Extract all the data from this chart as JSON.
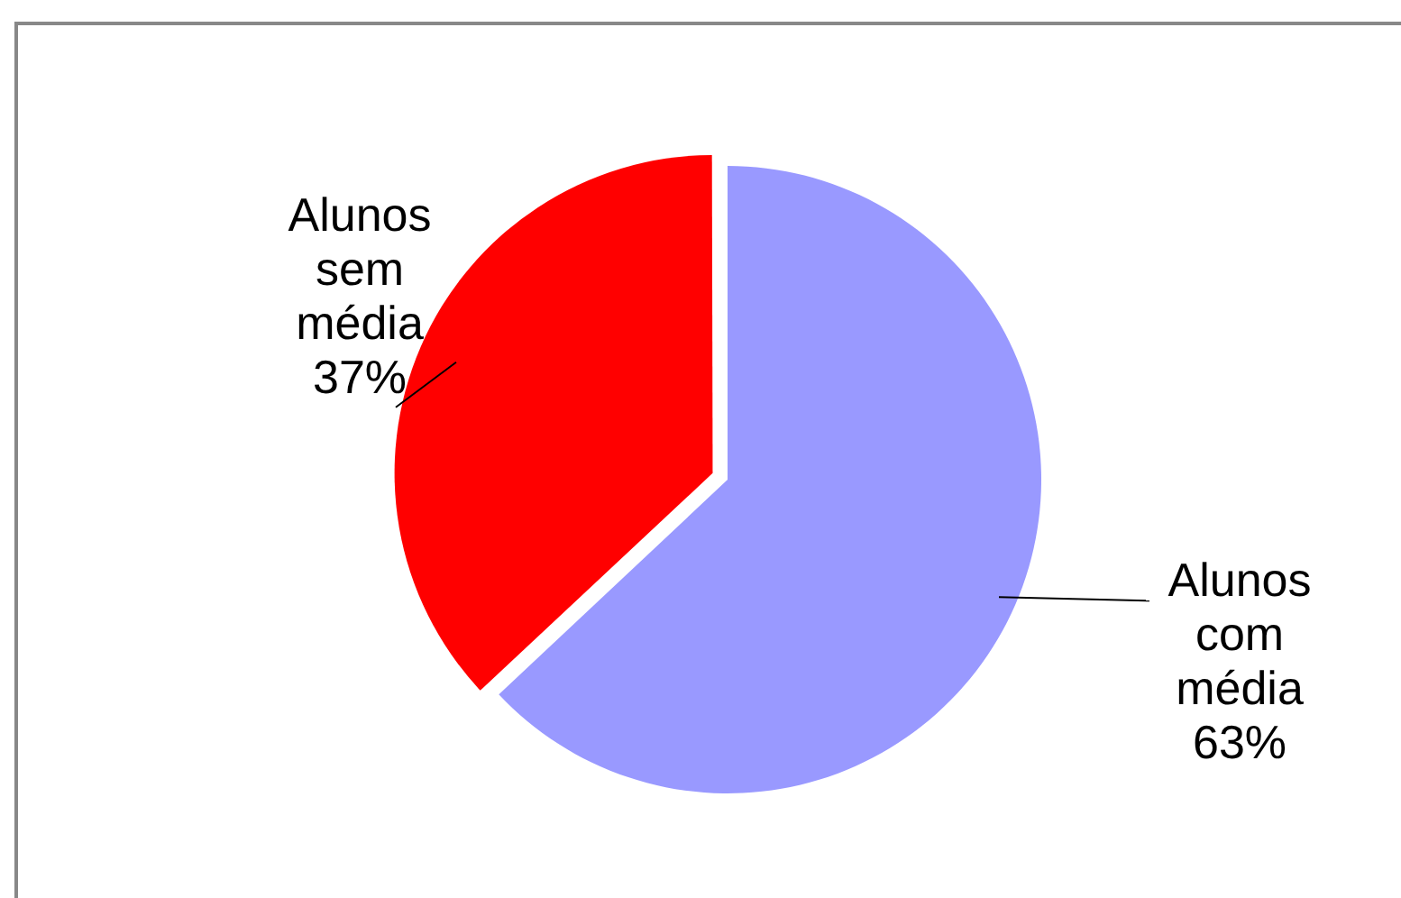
{
  "chart_data": {
    "type": "pie",
    "categories": [
      "Alunos com média",
      "Alunos sem média"
    ],
    "values": [
      63,
      37
    ],
    "value_labels": [
      "63%",
      "37%"
    ],
    "colors": [
      "#9999ff",
      "#ff0000"
    ],
    "legend": false
  }
}
